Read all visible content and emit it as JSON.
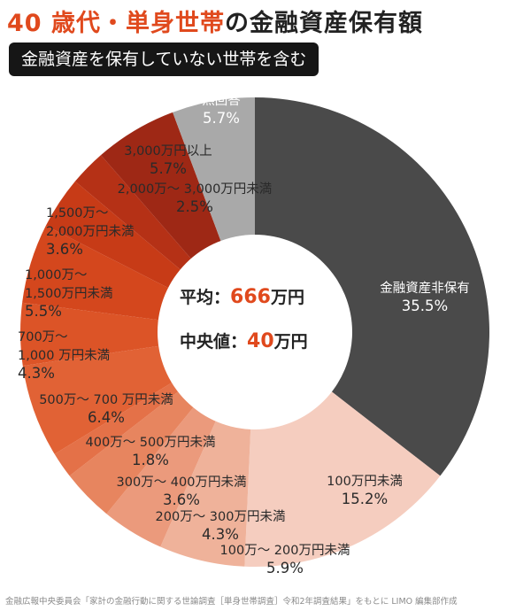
{
  "title_highlight": "40 歳代・単身世帯",
  "title_rest": "の金融資産保有額",
  "subtitle": "金融資産を保有していない世帯を含む",
  "center": {
    "avg_label": "平均：",
    "avg_value": "666",
    "avg_unit": "万円",
    "median_label": "中央値：",
    "median_value": "40",
    "median_unit": "万円"
  },
  "footer": "金融広報中央委員会「家計の金融行動に関する世論調査［単身世帯調査］令和2年調査結果」をもとに LIMO 編集部作成",
  "colors": {
    "accent": "#e0491d",
    "none": "#4a4a4a",
    "no_answer": "#a9a9a9"
  },
  "chart_data": {
    "type": "pie",
    "donut": true,
    "title": "40 歳代・単身世帯の金融資産保有額",
    "subtitle": "金融資産を保有していない世帯を含む",
    "slices": [
      {
        "label": "金融資産非保有",
        "value_text": "35.5%",
        "value": 35.5,
        "color": "#4a4a4a"
      },
      {
        "label": "100万円未満",
        "value_text": "15.2%",
        "value": 15.2,
        "color": "#f5cdbf"
      },
      {
        "label": "100万～ 200万円未満",
        "value_text": "5.9%",
        "value": 5.9,
        "color": "#efb29a"
      },
      {
        "label": "200万～ 300万円未満",
        "value_text": "4.3%",
        "value": 4.3,
        "color": "#eb9a7c"
      },
      {
        "label": "300万～ 400万円未満",
        "value_text": "3.6%",
        "value": 3.6,
        "color": "#e7855f"
      },
      {
        "label": "400万～ 500万円未満",
        "value_text": "1.8%",
        "value": 1.8,
        "color": "#e47148"
      },
      {
        "label": "500万～ 700 万円未満",
        "value_text": "6.4%",
        "value": 6.4,
        "color": "#e16235"
      },
      {
        "label": "700万～ 1,000 万円未満",
        "value_text": "4.3%",
        "value": 4.3,
        "color": "#dc5427"
      },
      {
        "label": "1,000万～ 1,500万円未満",
        "value_text": "5.5%",
        "value": 5.5,
        "color": "#d4471d"
      },
      {
        "label": "1,500万～ 2,000万円未満",
        "value_text": "3.6%",
        "value": 3.6,
        "color": "#c73b17"
      },
      {
        "label": "2,000万～ 3,000万円未満",
        "value_text": "2.5%",
        "value": 2.5,
        "color": "#b53116"
      },
      {
        "label": "3,000万円以上",
        "value_text": "5.7%",
        "value": 5.7,
        "color": "#9e2815"
      },
      {
        "label": "無回答",
        "value_text": "5.7%",
        "value": 5.7,
        "color": "#a9a9a9"
      }
    ]
  }
}
